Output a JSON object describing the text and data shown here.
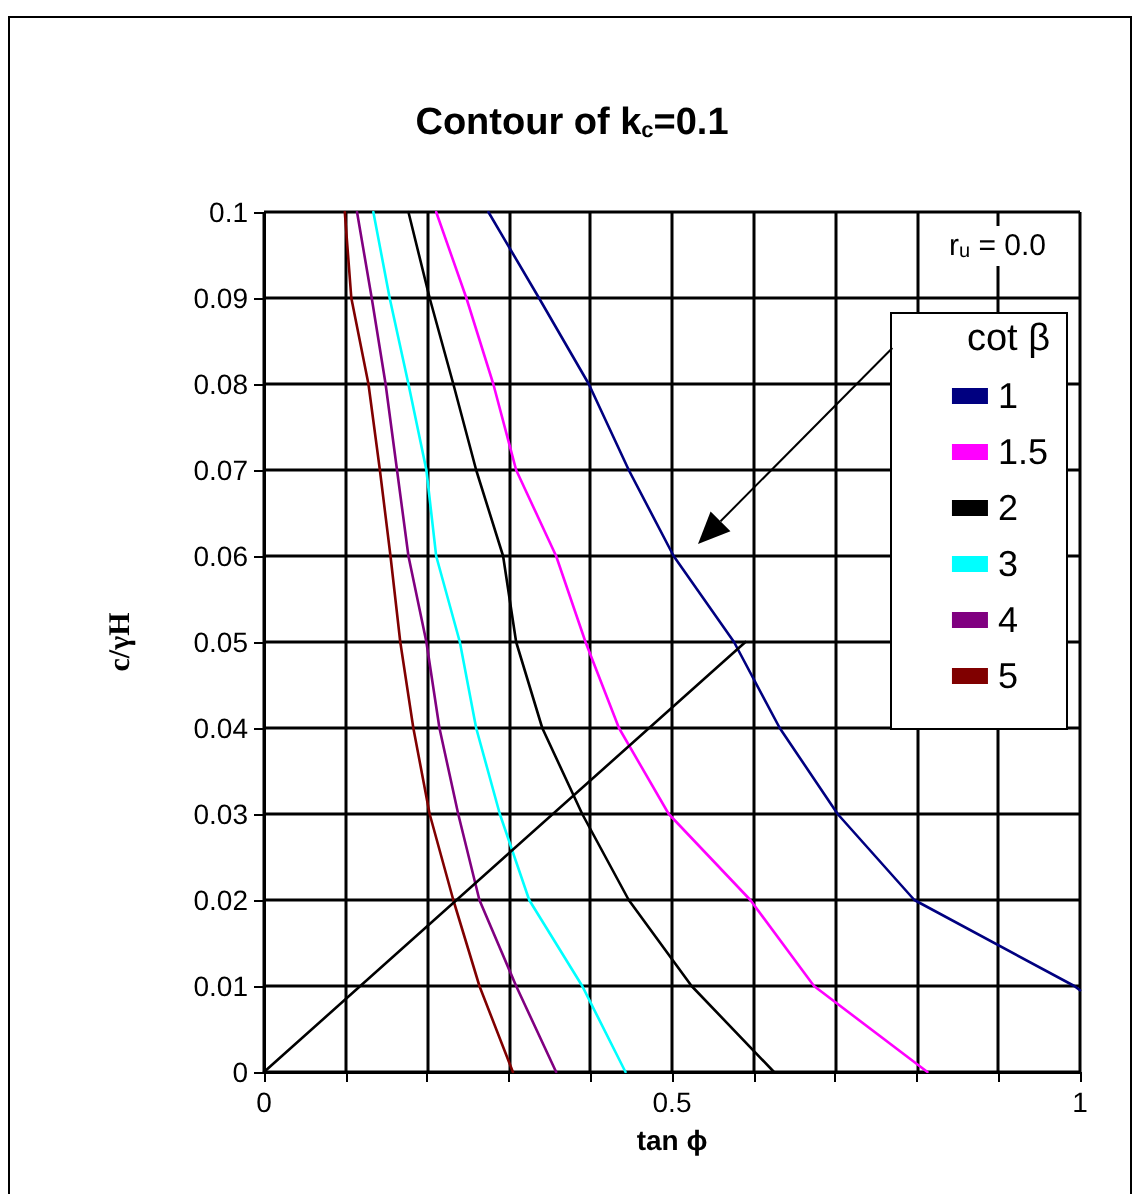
{
  "chart_data": {
    "type": "line",
    "title": "Contour of k$_{c}$=0.1",
    "xlabel": "tan ϕ",
    "ylabel": "c/γH",
    "legend_title": "cot β",
    "legend": "right",
    "grid": true,
    "marker": "none",
    "line_style": "solid",
    "xlim": [
      0,
      1
    ],
    "ylim": [
      0,
      0.1
    ],
    "xticks": [
      0,
      {
        "value": 0.1,
        "label": null
      },
      {
        "value": 0.2,
        "label": null
      },
      {
        "value": 0.3,
        "label": null
      },
      {
        "value": 0.4,
        "label": null
      },
      0.5,
      {
        "value": 0.6,
        "label": null
      },
      {
        "value": 0.7,
        "label": null
      },
      {
        "value": 0.8,
        "label": null
      },
      {
        "value": 0.9,
        "label": null
      },
      1
    ],
    "yticks": [
      0,
      0.01,
      0.02,
      0.03,
      0.04,
      0.05,
      0.06,
      0.07,
      0.08,
      0.09,
      0.1
    ],
    "annotations": [
      "r$_{u}$ = 0.0"
    ],
    "series": [
      {
        "name": "1",
        "color": "#000080",
        "x": [
          0.275,
          0.337,
          0.398,
          0.447,
          0.502,
          0.576,
          0.632,
          0.703,
          0.797,
          0.993,
          1
        ],
        "values": [
          0.1,
          0.09,
          0.08,
          0.07,
          0.06,
          0.05,
          0.04,
          0.03,
          0.02,
          0.01,
          0.0095
        ]
      },
      {
        "name": "1.5",
        "color": "#ff00ff",
        "x": [
          0.211,
          0.248,
          0.281,
          0.309,
          0.358,
          0.394,
          0.435,
          0.496,
          0.596,
          0.674,
          0.813
        ],
        "values": [
          0.1,
          0.09,
          0.08,
          0.07,
          0.06,
          0.05,
          0.04,
          0.03,
          0.02,
          0.01,
          0
        ]
      },
      {
        "name": "2",
        "color": "#000000",
        "x": [
          0.177,
          0.203,
          0.232,
          0.26,
          0.293,
          0.309,
          0.341,
          0.39,
          0.447,
          0.524,
          0.625
        ],
        "values": [
          0.1,
          0.09,
          0.08,
          0.07,
          0.06,
          0.05,
          0.04,
          0.03,
          0.02,
          0.01,
          0
        ]
      },
      {
        "name": "3",
        "color": "#00ffff",
        "x": [
          0.134,
          0.154,
          0.177,
          0.199,
          0.211,
          0.24,
          0.26,
          0.289,
          0.325,
          0.39,
          0.443
        ],
        "values": [
          0.1,
          0.09,
          0.08,
          0.07,
          0.06,
          0.05,
          0.04,
          0.03,
          0.02,
          0.01,
          0
        ]
      },
      {
        "name": "4",
        "color": "#800080",
        "x": [
          0.114,
          0.132,
          0.149,
          0.163,
          0.177,
          0.199,
          0.215,
          0.238,
          0.264,
          0.309,
          0.358
        ],
        "values": [
          0.1,
          0.09,
          0.08,
          0.07,
          0.06,
          0.05,
          0.04,
          0.03,
          0.02,
          0.01,
          0
        ]
      },
      {
        "name": "5",
        "color": "#800000",
        "x": [
          0.099,
          0.107,
          0.128,
          0.142,
          0.155,
          0.167,
          0.183,
          0.203,
          0.232,
          0.264,
          0.305
        ],
        "values": [
          0.1,
          0.09,
          0.08,
          0.07,
          0.06,
          0.05,
          0.04,
          0.03,
          0.02,
          0.01,
          0
        ]
      },
      {
        "color": "#000000",
        "x": [
          0,
          0.59
        ],
        "values": [
          0,
          0.05
        ]
      }
    ]
  }
}
